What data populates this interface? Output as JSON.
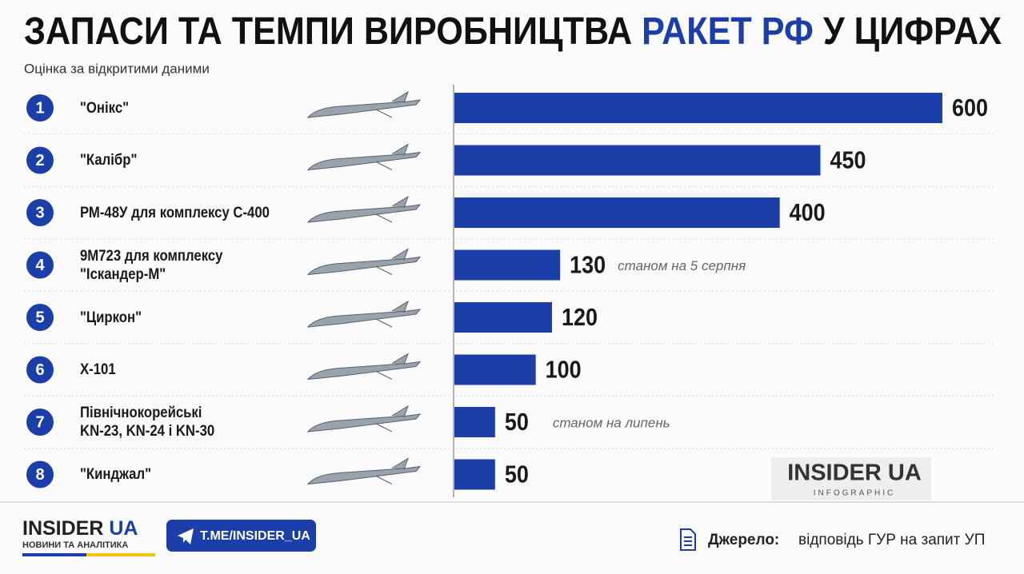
{
  "chart_data": {
    "type": "hbar",
    "title_parts": [
      "ЗАПАСИ ТА ТЕМПИ ВИРОБНИЦТВА",
      "РАКЕТ РФ",
      "У ЦИФРАХ"
    ],
    "subtitle": "Оцінка за відкритими даними",
    "ranks": [
      1,
      2,
      3,
      4,
      5,
      6,
      7,
      8
    ],
    "categories": [
      "\"Онікс\"",
      "\"Калібр\"",
      "РМ-48У для комплексу С-400",
      "9М723 для комплексу\n\"Іскандер-М\"",
      "\"Циркон\"",
      "Х-101",
      "Північнокорейські\nKN-23, KN-24 і KN-30",
      "\"Кинджал\""
    ],
    "values": [
      600,
      450,
      400,
      130,
      120,
      100,
      50,
      50
    ],
    "notes": [
      null,
      null,
      null,
      "станом на 5 серпня",
      null,
      null,
      "станом на липень",
      null
    ],
    "color": "#1b3ea8"
  },
  "watermark": {
    "name": "INSIDER UA",
    "tag": "INFOGRAPHIC"
  },
  "footer": {
    "logo": "INSIDER",
    "logo_accent": "UA",
    "tagline": "НОВИНИ ТА АНАЛІТИКА",
    "telegram": "T.ME/INSIDER_UA",
    "source_label": "Джерело:",
    "source": "відповідь ГУР на запит УП"
  }
}
